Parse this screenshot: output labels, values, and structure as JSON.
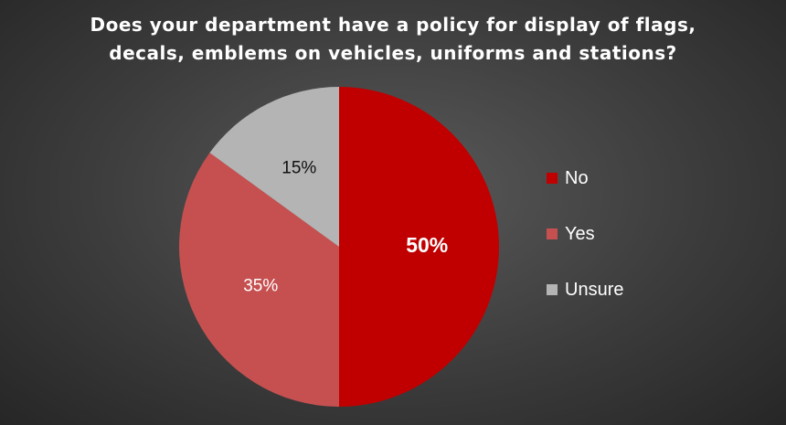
{
  "chart_data": {
    "type": "pie",
    "title": "Does your department have a policy for display of flags, decals, emblems on vehicles, uniforms and stations?",
    "title_lines": [
      "Does your department have a policy for display of flags,",
      "decals, emblems on vehicles, uniforms and stations?"
    ],
    "legend_position": "right",
    "slices": [
      {
        "label": "No",
        "value": 50,
        "display": "50%",
        "color": "#c00000",
        "label_color": "#ffffff",
        "bold": true
      },
      {
        "label": "Yes",
        "value": 35,
        "display": "35%",
        "color": "#c65050",
        "label_color": "#ffffff",
        "bold": false
      },
      {
        "label": "Unsure",
        "value": 15,
        "display": "15%",
        "color": "#b4b4b4",
        "label_color": "#111111",
        "bold": false
      }
    ]
  }
}
